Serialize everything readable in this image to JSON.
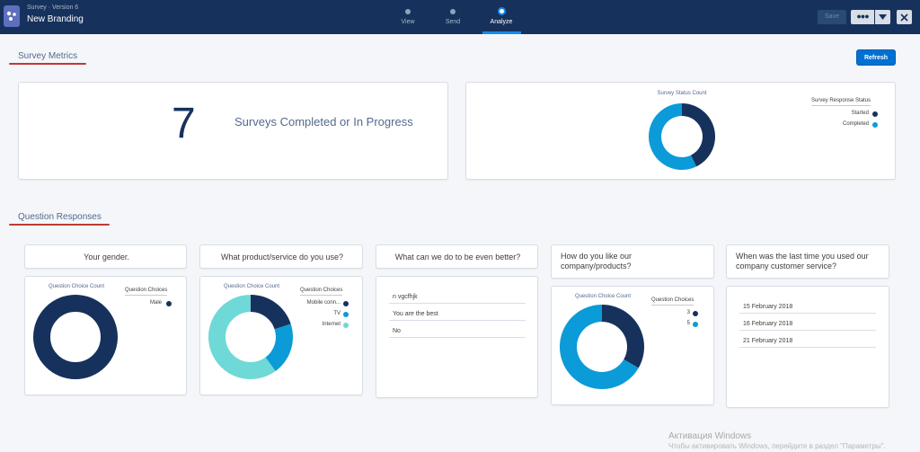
{
  "header": {
    "subtitle": "Survey · Version 6",
    "title": "New Branding",
    "steps": [
      {
        "label": "View",
        "active": false
      },
      {
        "label": "Send",
        "active": false
      },
      {
        "label": "Analyze",
        "active": true
      }
    ],
    "save_label": "Save",
    "more_label": "●●●"
  },
  "metrics": {
    "section_title": "Survey Metrics",
    "refresh_label": "Refresh",
    "count": "7",
    "count_label": "Surveys Completed or In Progress",
    "status_chart": {
      "title": "Survey Status Count",
      "legend_title": "Survey Response Status",
      "legend": [
        "Started",
        "Completed"
      ]
    }
  },
  "responses": {
    "section_title": "Question Responses",
    "q1": {
      "title": "Your gender.",
      "chart_title": "Question Choice Count",
      "legend_title": "Question Choices",
      "legend": [
        "Male"
      ]
    },
    "q2": {
      "title": "What product/service do you use?",
      "chart_title": "Question Choice Count",
      "legend_title": "Question Choices",
      "legend": [
        "Mobile conn...",
        "TV",
        "Internet"
      ]
    },
    "q3": {
      "title": "What can we do to be even better?",
      "rows": [
        "n vgcfhjk",
        "You are the best",
        "No"
      ]
    },
    "q4": {
      "title_line1": "How do you like our",
      "title_line2": "company/products?",
      "chart_title": "Question Choice Count",
      "legend_title": "Question Choices",
      "legend": [
        "3",
        "5"
      ]
    },
    "q5": {
      "title_line1": "When was the last time you used our",
      "title_line2": "company customer service?",
      "rows": [
        "15 February 2018",
        "16 February 2018",
        "21 February 2018"
      ]
    }
  },
  "colors": {
    "navy": "#16325c",
    "blue": "#0b9bd8",
    "teal": "#6ed9d6",
    "accent": "#0070d2",
    "underline_red": "#c23934"
  },
  "chart_data": [
    {
      "type": "pie",
      "title": "Survey Status Count",
      "categories": [
        "Started",
        "Completed"
      ],
      "values": [
        3,
        4
      ]
    },
    {
      "type": "pie",
      "title": "Question Choice Count",
      "categories": [
        "Male"
      ],
      "values": [
        1
      ]
    },
    {
      "type": "pie",
      "title": "Question Choice Count",
      "categories": [
        "Mobile conn...",
        "TV",
        "Internet"
      ],
      "values": [
        1,
        1,
        3
      ]
    },
    {
      "type": "pie",
      "title": "Question Choice Count",
      "categories": [
        "3",
        "5"
      ],
      "values": [
        1,
        2
      ]
    }
  ],
  "watermark": {
    "line1": "Активация Windows",
    "line2": "Чтобы активировать Windows, перейдите в раздел \"Параметры\"."
  }
}
